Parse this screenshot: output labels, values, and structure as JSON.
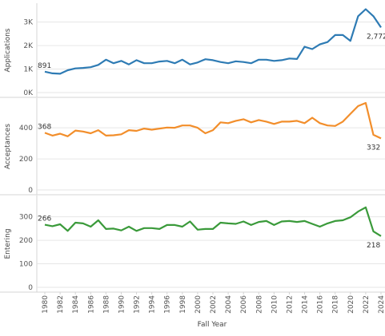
{
  "chart_data": {
    "type": "line",
    "xlabel": "Fall Year",
    "x": [
      1980,
      1981,
      1982,
      1983,
      1984,
      1985,
      1986,
      1987,
      1988,
      1989,
      1990,
      1991,
      1992,
      1993,
      1994,
      1995,
      1996,
      1997,
      1998,
      1999,
      2000,
      2001,
      2002,
      2003,
      2004,
      2005,
      2006,
      2007,
      2008,
      2009,
      2010,
      2011,
      2012,
      2013,
      2014,
      2015,
      2016,
      2017,
      2018,
      2019,
      2020,
      2021,
      2022,
      2023,
      2024
    ],
    "x_ticks": [
      1980,
      1982,
      1984,
      1986,
      1988,
      1990,
      1992,
      1994,
      1996,
      1998,
      2000,
      2002,
      2004,
      2006,
      2008,
      2010,
      2012,
      2014,
      2016,
      2018,
      2020,
      2022,
      2024
    ],
    "series": [
      {
        "ylabel": "Applications",
        "color": "#2e7bb4",
        "ylim": [
          0,
          3600
        ],
        "ticks": [
          0,
          1000,
          2000,
          3000
        ],
        "tick_labels": [
          "0K",
          "1K",
          "2K",
          "3K"
        ],
        "values": [
          891,
          820,
          800,
          950,
          1030,
          1050,
          1080,
          1180,
          1400,
          1250,
          1350,
          1200,
          1380,
          1250,
          1250,
          1320,
          1350,
          1250,
          1400,
          1200,
          1280,
          1420,
          1380,
          1300,
          1250,
          1330,
          1300,
          1250,
          1400,
          1400,
          1350,
          1380,
          1450,
          1430,
          1950,
          1850,
          2050,
          2150,
          2450,
          2450,
          2200,
          3250,
          3550,
          3250,
          2772
        ],
        "start_label": "891",
        "end_label": "2,772"
      },
      {
        "ylabel": "Acceptances",
        "color": "#f28e2b",
        "ylim": [
          0,
          560
        ],
        "ticks": [
          0,
          200,
          400
        ],
        "tick_labels": [
          "0",
          "200",
          "400"
        ],
        "values": [
          368,
          350,
          362,
          345,
          382,
          376,
          365,
          385,
          350,
          352,
          358,
          385,
          380,
          395,
          388,
          395,
          402,
          400,
          415,
          415,
          400,
          365,
          385,
          435,
          430,
          445,
          455,
          435,
          450,
          440,
          425,
          440,
          440,
          445,
          430,
          465,
          430,
          415,
          412,
          440,
          490,
          540,
          560,
          355,
          332
        ],
        "start_label": "368",
        "end_label": "332"
      },
      {
        "ylabel": "Entering",
        "color": "#3a9a3a",
        "ylim": [
          0,
          370
        ],
        "ticks": [
          0,
          100,
          200,
          300
        ],
        "tick_labels": [
          "0",
          "100",
          "200",
          "300"
        ],
        "values": [
          266,
          260,
          268,
          240,
          275,
          272,
          258,
          285,
          248,
          250,
          242,
          258,
          240,
          252,
          252,
          248,
          265,
          265,
          258,
          280,
          245,
          248,
          248,
          275,
          272,
          270,
          280,
          265,
          278,
          282,
          265,
          280,
          282,
          278,
          282,
          270,
          258,
          272,
          282,
          285,
          298,
          322,
          340,
          238,
          218
        ],
        "start_label": "266",
        "end_label": "218"
      }
    ]
  }
}
